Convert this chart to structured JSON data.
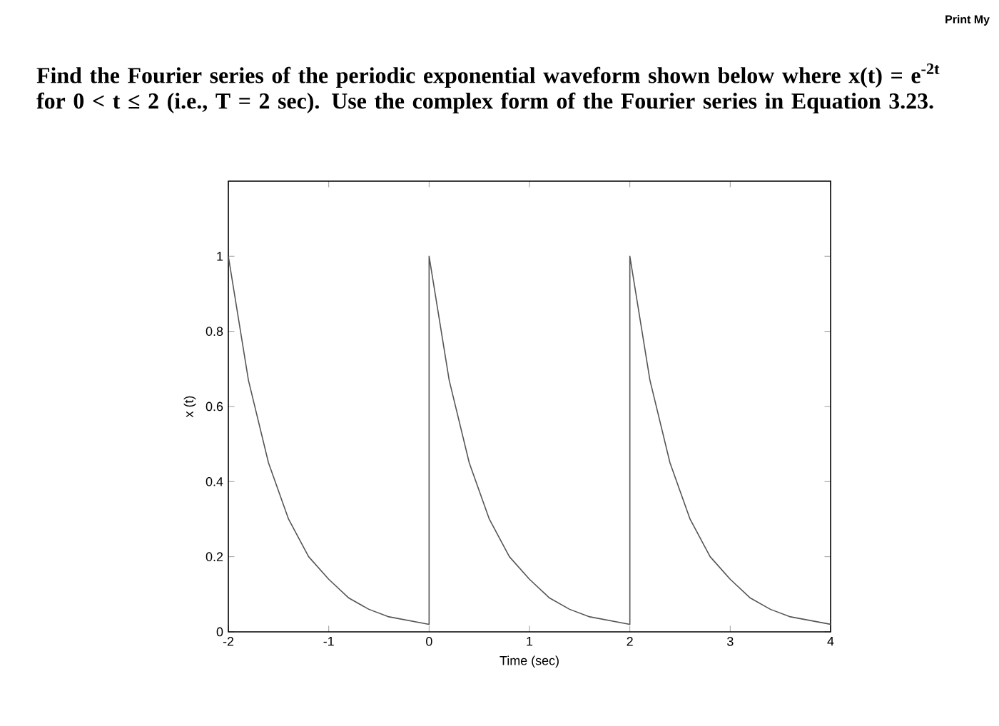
{
  "chart_data": {
    "type": "line",
    "title": "Find the Fourier series of the periodic exponential waveform shown below where x(t) = e$^{-2t}$ for 0 < t ≤ 2 (i.e., T = 2 sec). Use the complex form of the Fourier series in Equation 3.23.",
    "xlabel": "Time (sec)",
    "ylabel": "x (t)",
    "annotations": [
      "Print My"
    ],
    "x": [
      -2,
      -1.8,
      -1.6,
      -1.4,
      -1.2,
      -1,
      -0.8,
      -0.6,
      -0.4,
      -0.2,
      0,
      0,
      0.2,
      0.4,
      0.6,
      0.8,
      1,
      1.2,
      1.4,
      1.6,
      1.8,
      2,
      2,
      2.2,
      2.4,
      2.6,
      2.8,
      3,
      3.2,
      3.4,
      3.6,
      3.8,
      4
    ],
    "series": [
      {
        "color": "#555555",
        "values": [
          1,
          0.67,
          0.45,
          0.3,
          0.2,
          0.14,
          0.09,
          0.06,
          0.04,
          0.03,
          0.02,
          1,
          0.67,
          0.45,
          0.3,
          0.2,
          0.14,
          0.09,
          0.06,
          0.04,
          0.03,
          0.02,
          1,
          0.67,
          0.45,
          0.3,
          0.2,
          0.14,
          0.09,
          0.06,
          0.04,
          0.03,
          0.02
        ]
      }
    ],
    "xlim": [
      -2,
      4
    ],
    "ylim": [
      0,
      1.2
    ],
    "xticks": [
      -2,
      -1,
      0,
      1,
      2,
      3,
      4
    ],
    "yticks": [
      0,
      0.2,
      0.4,
      0.6,
      0.8,
      1
    ],
    "marker": "none",
    "line_style": "solid"
  }
}
